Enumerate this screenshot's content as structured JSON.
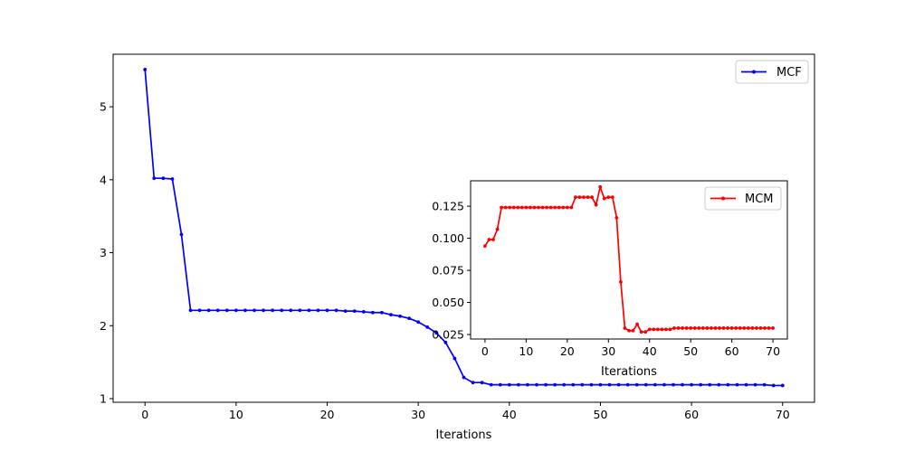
{
  "chart_data": [
    {
      "type": "line",
      "name": "main-plot",
      "title": "",
      "xlabel": "Iterations",
      "ylabel": "",
      "xlim": [
        -3.5,
        73.5
      ],
      "ylim": [
        0.95,
        5.72
      ],
      "xticks": [
        0,
        10,
        20,
        30,
        40,
        50,
        60,
        70
      ],
      "xtick_labels": [
        "0",
        "10",
        "20",
        "30",
        "40",
        "50",
        "60",
        "70"
      ],
      "yticks": [
        1,
        2,
        3,
        4,
        5
      ],
      "ytick_labels": [
        "1",
        "2",
        "3",
        "4",
        "5"
      ],
      "grid": false,
      "legend_position": "top-right",
      "series": [
        {
          "name": "MCF",
          "color": "#0000ff",
          "marker": "dot",
          "x": [
            0,
            1,
            2,
            3,
            4,
            5,
            6,
            7,
            8,
            9,
            10,
            11,
            12,
            13,
            14,
            15,
            16,
            17,
            18,
            19,
            20,
            21,
            22,
            23,
            24,
            25,
            26,
            27,
            28,
            29,
            30,
            31,
            32,
            33,
            34,
            35,
            36,
            37,
            38,
            39,
            40,
            41,
            42,
            43,
            44,
            45,
            46,
            47,
            48,
            49,
            50,
            51,
            52,
            53,
            54,
            55,
            56,
            57,
            58,
            59,
            60,
            61,
            62,
            63,
            64,
            65,
            66,
            67,
            68,
            69,
            70
          ],
          "values": [
            5.51,
            4.02,
            4.02,
            4.01,
            3.25,
            2.21,
            2.21,
            2.21,
            2.21,
            2.21,
            2.21,
            2.21,
            2.21,
            2.21,
            2.21,
            2.21,
            2.21,
            2.21,
            2.21,
            2.21,
            2.21,
            2.21,
            2.2,
            2.2,
            2.19,
            2.18,
            2.18,
            2.15,
            2.13,
            2.1,
            2.05,
            1.98,
            1.9,
            1.77,
            1.55,
            1.29,
            1.22,
            1.22,
            1.19,
            1.19,
            1.19,
            1.19,
            1.19,
            1.19,
            1.19,
            1.19,
            1.19,
            1.19,
            1.19,
            1.19,
            1.19,
            1.19,
            1.19,
            1.19,
            1.19,
            1.19,
            1.19,
            1.19,
            1.19,
            1.19,
            1.19,
            1.19,
            1.19,
            1.19,
            1.19,
            1.19,
            1.19,
            1.19,
            1.19,
            1.18,
            1.18
          ]
        }
      ]
    },
    {
      "type": "line",
      "name": "inset-plot",
      "title": "",
      "xlabel": "Iterations",
      "ylabel": "",
      "xlim": [
        -3.5,
        73.5
      ],
      "ylim": [
        0.0215,
        0.1448
      ],
      "xticks": [
        0,
        10,
        20,
        30,
        40,
        50,
        60,
        70
      ],
      "xtick_labels": [
        "0",
        "10",
        "20",
        "30",
        "40",
        "50",
        "60",
        "70"
      ],
      "yticks": [
        0.025,
        0.05,
        0.075,
        0.1,
        0.125
      ],
      "ytick_labels": [
        "0.025",
        "0.050",
        "0.075",
        "0.100",
        "0.125"
      ],
      "grid": false,
      "legend_position": "top-right",
      "series": [
        {
          "name": "MCM",
          "color": "#ff0000",
          "marker": "dot",
          "x": [
            0,
            1,
            2,
            3,
            4,
            5,
            6,
            7,
            8,
            9,
            10,
            11,
            12,
            13,
            14,
            15,
            16,
            17,
            18,
            19,
            20,
            21,
            22,
            23,
            24,
            25,
            26,
            27,
            28,
            29,
            30,
            31,
            32,
            33,
            34,
            35,
            36,
            37,
            38,
            39,
            40,
            41,
            42,
            43,
            44,
            45,
            46,
            47,
            48,
            49,
            50,
            51,
            52,
            53,
            54,
            55,
            56,
            57,
            58,
            59,
            60,
            61,
            62,
            63,
            64,
            65,
            66,
            67,
            68,
            69,
            70
          ],
          "values": [
            0.094,
            0.099,
            0.099,
            0.107,
            0.124,
            0.124,
            0.124,
            0.124,
            0.124,
            0.124,
            0.124,
            0.124,
            0.124,
            0.124,
            0.124,
            0.124,
            0.124,
            0.124,
            0.124,
            0.124,
            0.124,
            0.124,
            0.132,
            0.132,
            0.132,
            0.132,
            0.132,
            0.126,
            0.14,
            0.131,
            0.132,
            0.132,
            0.116,
            0.066,
            0.03,
            0.028,
            0.028,
            0.033,
            0.027,
            0.027,
            0.029,
            0.029,
            0.029,
            0.029,
            0.029,
            0.029,
            0.03,
            0.03,
            0.03,
            0.03,
            0.03,
            0.03,
            0.03,
            0.03,
            0.03,
            0.03,
            0.03,
            0.03,
            0.03,
            0.03,
            0.03,
            0.03,
            0.03,
            0.03,
            0.03,
            0.03,
            0.03,
            0.03,
            0.03,
            0.03,
            0.03
          ]
        }
      ]
    }
  ]
}
